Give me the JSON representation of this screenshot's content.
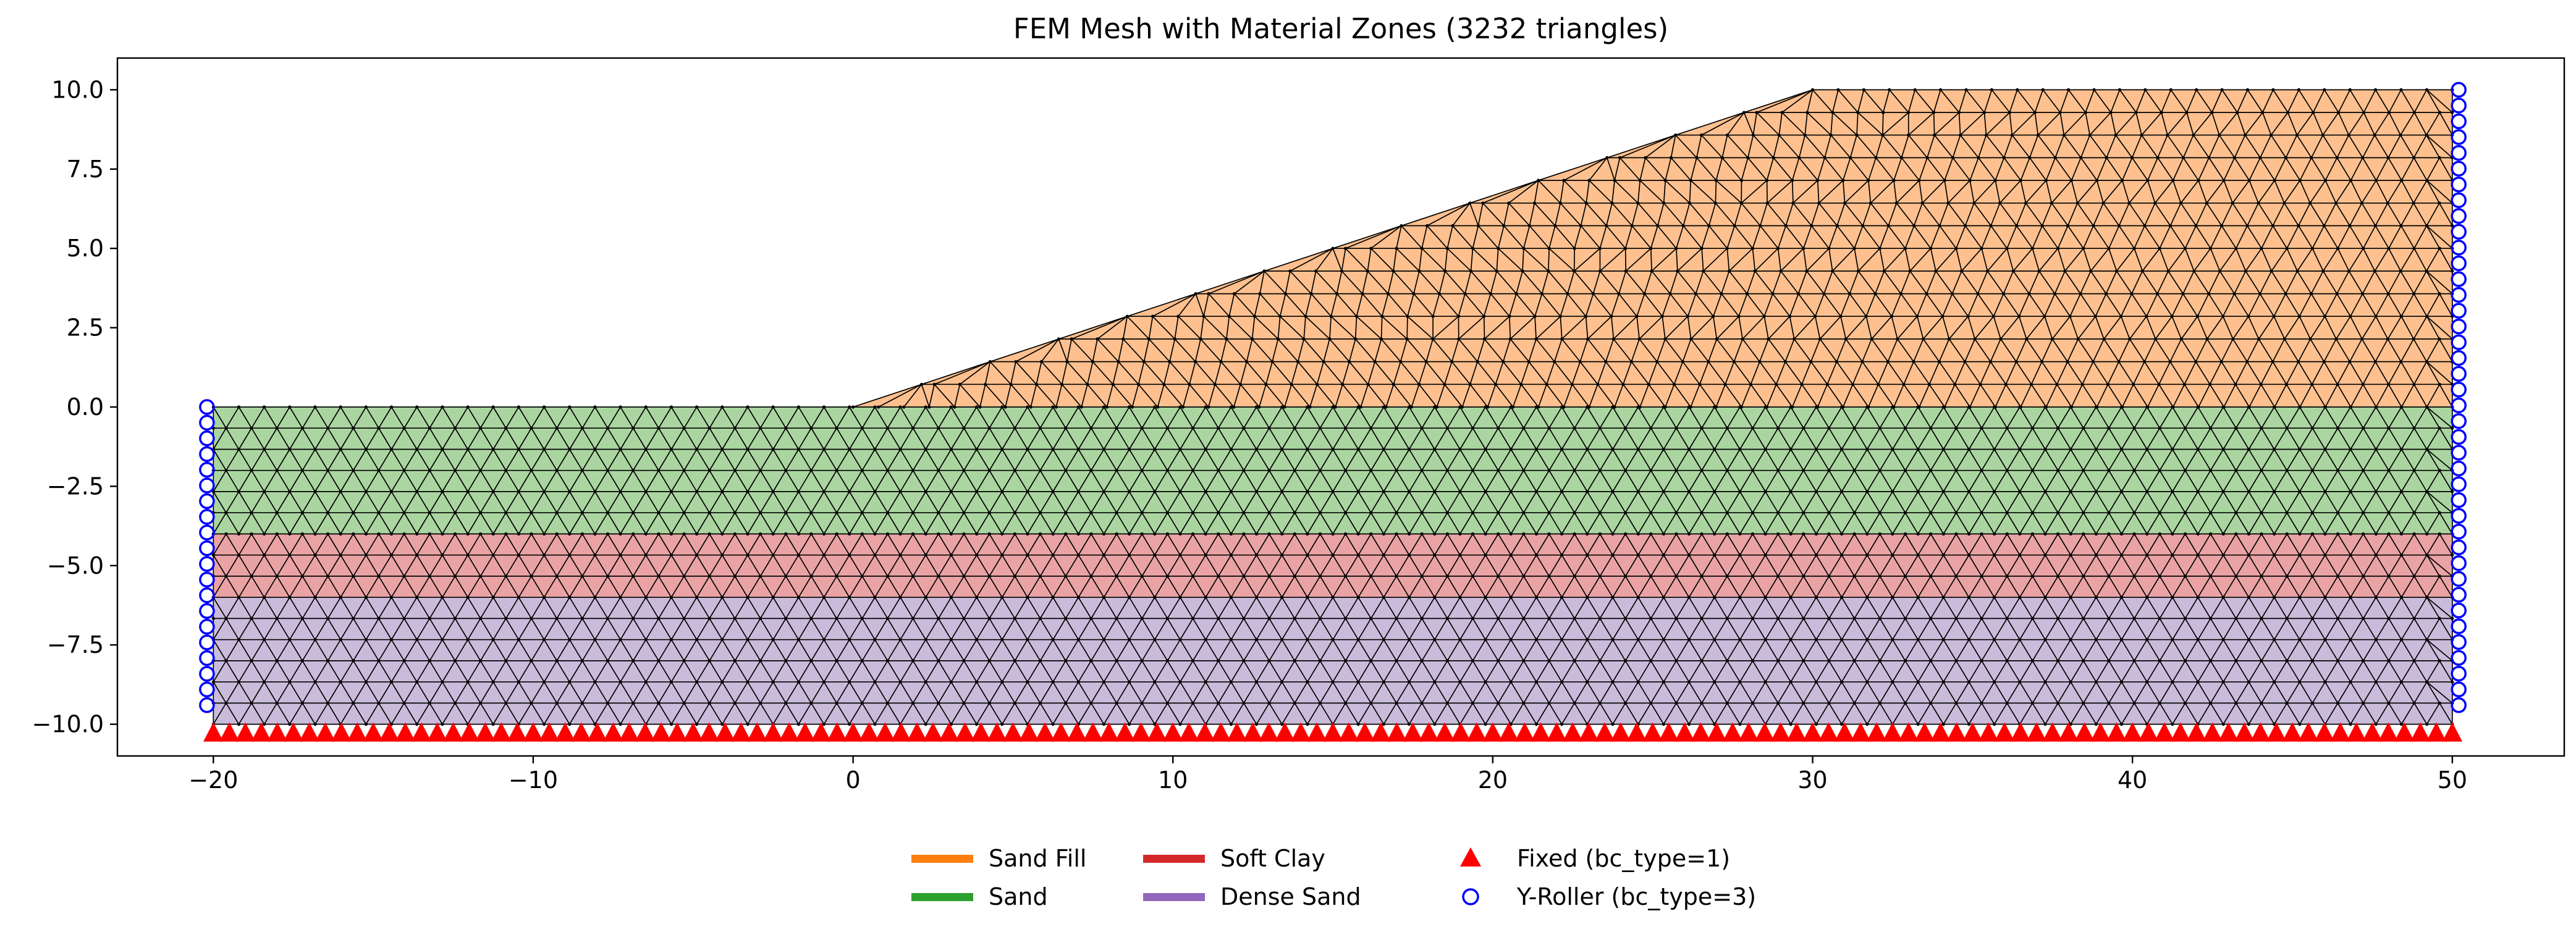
{
  "chart_data": {
    "type": "mesh",
    "title": "FEM Mesh with Material Zones (3232 triangles)",
    "xlabel": "",
    "ylabel": "",
    "xlim": [
      -23.0,
      53.5
    ],
    "ylim": [
      -11.0,
      11.0
    ],
    "xticks": [
      -20,
      -10,
      0,
      10,
      20,
      30,
      40,
      50
    ],
    "xtick_labels": [
      "−20",
      "−10",
      "0",
      "10",
      "20",
      "30",
      "40",
      "50"
    ],
    "yticks": [
      10.0,
      7.5,
      5.0,
      2.5,
      0.0,
      -2.5,
      -5.0,
      -7.5,
      -10.0
    ],
    "ytick_labels": [
      "10.0",
      "7.5",
      "5.0",
      "2.5",
      "0.0",
      "−2.5",
      "−5.0",
      "−7.5",
      "−10.0"
    ],
    "grid": false,
    "legend_position": "bottom-center",
    "zones": [
      {
        "name": "Sand Fill",
        "color": "#ff7f0e",
        "fill": "#fdc08e",
        "polygon": [
          [
            0,
            0
          ],
          [
            30,
            10
          ],
          [
            50,
            10
          ],
          [
            50,
            0
          ]
        ]
      },
      {
        "name": "Sand",
        "color": "#2ca02c",
        "fill": "#aad5a0",
        "polygon": [
          [
            -20,
            0
          ],
          [
            50,
            0
          ],
          [
            50,
            -4
          ],
          [
            -20,
            -4
          ]
        ]
      },
      {
        "name": "Soft Clay",
        "color": "#d62728",
        "fill": "#eaa3a5",
        "polygon": [
          [
            -20,
            -4
          ],
          [
            50,
            -4
          ],
          [
            50,
            -6
          ],
          [
            -20,
            -6
          ]
        ]
      },
      {
        "name": "Dense Sand",
        "color": "#9467bd",
        "fill": "#cabbdb",
        "polygon": [
          [
            -20,
            -6
          ],
          [
            50,
            -6
          ],
          [
            50,
            -10
          ],
          [
            -20,
            -10
          ]
        ]
      }
    ],
    "boundary_conditions": [
      {
        "name": "Fixed (bc_type=1)",
        "marker": "triangle",
        "color": "#ff0000",
        "filled": true,
        "edge": "bottom",
        "y": -10.3,
        "x_range": [
          -20,
          50
        ]
      },
      {
        "name": "Y-Roller (bc_type=3)",
        "marker": "circle",
        "color": "#0000ff",
        "filled": false,
        "edges": [
          {
            "x": -20.2,
            "y_range": [
              -9.4,
              0.0
            ]
          },
          {
            "x": 50.2,
            "y_range": [
              -9.4,
              10.0
            ]
          }
        ]
      }
    ],
    "mesh": {
      "triangles": 3232,
      "edge_color": "#000000",
      "node_color": "#000000"
    }
  },
  "legend": {
    "items": [
      {
        "label": "Sand Fill",
        "color": "#ff7f0e",
        "kind": "line"
      },
      {
        "label": "Sand",
        "color": "#2ca02c",
        "kind": "line"
      },
      {
        "label": "Soft Clay",
        "color": "#d62728",
        "kind": "line"
      },
      {
        "label": "Dense Sand",
        "color": "#9467bd",
        "kind": "line"
      },
      {
        "label": "Fixed (bc_type=1)",
        "color": "#ff0000",
        "kind": "triangle"
      },
      {
        "label": "Y-Roller (bc_type=3)",
        "color": "#0000ff",
        "kind": "circle"
      }
    ]
  }
}
